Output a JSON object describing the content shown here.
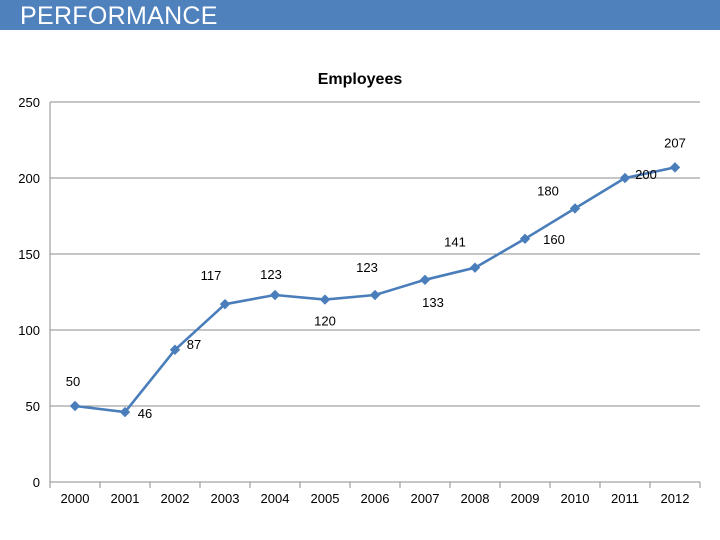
{
  "page": {
    "header_title": "PERFORMANCE",
    "header_color": "#4f81bd"
  },
  "chart_data": {
    "type": "line",
    "title": "Employees",
    "xlabel": "",
    "ylabel": "",
    "categories": [
      "2000",
      "2001",
      "2002",
      "2003",
      "2004",
      "2005",
      "2006",
      "2007",
      "2008",
      "2009",
      "2010",
      "2011",
      "2012"
    ],
    "series": [
      {
        "name": "Employees",
        "values": [
          50,
          46,
          87,
          117,
          123,
          120,
          123,
          133,
          141,
          160,
          180,
          200,
          207
        ],
        "color": "#4a7ebb"
      }
    ],
    "ylim": [
      0,
      250
    ],
    "yticks": [
      0,
      50,
      100,
      150,
      200,
      250
    ],
    "grid": true,
    "legend": "none",
    "data_labels": [
      "50",
      "46",
      "87",
      "117",
      "123",
      "120",
      "123",
      "133",
      "141",
      "160",
      "180",
      "200",
      "207"
    ]
  }
}
